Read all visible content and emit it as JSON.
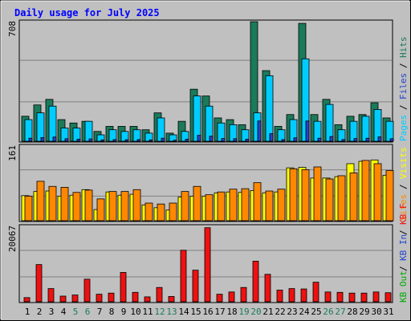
{
  "chart_data": [
    {
      "type": "bar",
      "title": "Daily usage for July 2025",
      "y_max_label": "708",
      "ylim": [
        0,
        708
      ],
      "side_legend": [
        "Pages",
        "Files",
        "Hits"
      ],
      "legend_separator": "/",
      "grid": true,
      "categories": [
        "1",
        "2",
        "3",
        "4",
        "5",
        "6",
        "7",
        "8",
        "9",
        "10",
        "11",
        "12",
        "13",
        "14",
        "15",
        "16",
        "17",
        "18",
        "19",
        "20",
        "21",
        "22",
        "23",
        "24",
        "25",
        "26",
        "27",
        "28",
        "29",
        "30",
        "31"
      ],
      "weekend_days": [
        "5",
        "6",
        "12",
        "13",
        "19",
        "20",
        "26",
        "27"
      ],
      "series": [
        {
          "name": "Hits",
          "color": "#1a7a5a",
          "values": [
            148,
            215,
            248,
            128,
            108,
            118,
            58,
            88,
            88,
            88,
            68,
            168,
            48,
            118,
            308,
            268,
            138,
            128,
            98,
            708,
            418,
            88,
            158,
            698,
            158,
            248,
            98,
            148,
            158,
            228,
            138
          ]
        },
        {
          "name": "Files",
          "color": "#00ccff",
          "values": [
            128,
            168,
            208,
            78,
            78,
            118,
            38,
            68,
            58,
            68,
            48,
            138,
            38,
            58,
            268,
            208,
            108,
            98,
            68,
            168,
            388,
            68,
            128,
            488,
            118,
            218,
            68,
            118,
            148,
            188,
            118
          ]
        },
        {
          "name": "Pages",
          "color": "#2244cc",
          "values": [
            18,
            22,
            25,
            15,
            12,
            14,
            8,
            10,
            9,
            10,
            8,
            18,
            6,
            12,
            35,
            30,
            16,
            15,
            12,
            120,
            45,
            10,
            20,
            120,
            18,
            28,
            10,
            16,
            18,
            26,
            15
          ]
        }
      ]
    },
    {
      "type": "bar",
      "y_max_label": "161",
      "ylim": [
        0,
        161
      ],
      "side_legend": [
        "Visits",
        "Sites"
      ],
      "legend_separator": "/",
      "grid": true,
      "series": [
        {
          "name": "Visits",
          "color": "#ffff00",
          "values": [
            54,
            63,
            64,
            53,
            55,
            67,
            24,
            62,
            55,
            57,
            34,
            28,
            23,
            51,
            53,
            53,
            60,
            62,
            61,
            65,
            60,
            62,
            114,
            115,
            92,
            92,
            95,
            123,
            128,
            131,
            98
          ]
        },
        {
          "name": "Sites",
          "color": "#ff8800",
          "values": [
            53,
            85,
            74,
            72,
            61,
            66,
            47,
            63,
            63,
            67,
            38,
            36,
            38,
            63,
            74,
            56,
            62,
            68,
            69,
            82,
            64,
            68,
            112,
            110,
            116,
            90,
            97,
            103,
            130,
            123,
            108
          ]
        }
      ]
    },
    {
      "type": "bar",
      "y_max_label": "20067",
      "ylim": [
        0,
        20067
      ],
      "side_legend": [
        "KB F",
        "KB In",
        "KB Out"
      ],
      "legend_separator": "/",
      "grid": true,
      "series": [
        {
          "name": "KB F",
          "color": "#ee1111",
          "values": [
            1100,
            9900,
            3500,
            1500,
            1800,
            6000,
            2000,
            2300,
            7800,
            2500,
            1300,
            3800,
            1400,
            13700,
            8400,
            19700,
            2000,
            2600,
            3800,
            10800,
            7300,
            3100,
            3500,
            3400,
            5200,
            2600,
            2500,
            2300,
            2300,
            2600,
            2400
          ]
        }
      ]
    }
  ]
}
